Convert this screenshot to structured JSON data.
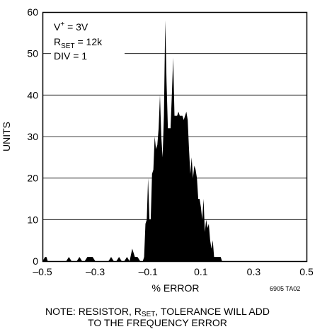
{
  "chart_data": {
    "type": "area",
    "title": "",
    "xlabel": "% ERROR",
    "ylabel": "UNITS",
    "xlim": [
      -0.5,
      0.5
    ],
    "ylim": [
      0,
      60
    ],
    "xticks": [
      "–0.5",
      "–0.3",
      "–0.1",
      "0.1",
      "0.3",
      "0.5"
    ],
    "yticks": [
      "0",
      "10",
      "20",
      "30",
      "40",
      "50",
      "60"
    ],
    "grid": "horizontal",
    "annotations": {
      "line1_base": "V",
      "line1_sup": "+",
      "line1_rest": " = 3V",
      "line2_base": "R",
      "line2_sub": "SET",
      "line2_rest": " = 12k",
      "line3": "DIV = 1"
    },
    "x": [
      -0.5,
      -0.49,
      -0.485,
      -0.48,
      -0.47,
      -0.46,
      -0.45,
      -0.44,
      -0.43,
      -0.42,
      -0.41,
      -0.4,
      -0.39,
      -0.38,
      -0.37,
      -0.36,
      -0.35,
      -0.34,
      -0.33,
      -0.32,
      -0.31,
      -0.3,
      -0.29,
      -0.28,
      -0.27,
      -0.26,
      -0.25,
      -0.24,
      -0.23,
      -0.22,
      -0.21,
      -0.2,
      -0.19,
      -0.18,
      -0.17,
      -0.16,
      -0.15,
      -0.145,
      -0.14,
      -0.13,
      -0.12,
      -0.115,
      -0.11,
      -0.105,
      -0.1,
      -0.095,
      -0.09,
      -0.085,
      -0.08,
      -0.075,
      -0.07,
      -0.065,
      -0.06,
      -0.055,
      -0.05,
      -0.045,
      -0.04,
      -0.035,
      -0.03,
      -0.025,
      -0.02,
      -0.015,
      -0.01,
      -0.005,
      0.0,
      0.005,
      0.01,
      0.015,
      0.02,
      0.025,
      0.03,
      0.035,
      0.04,
      0.045,
      0.05,
      0.055,
      0.06,
      0.065,
      0.07,
      0.075,
      0.08,
      0.085,
      0.09,
      0.095,
      0.1,
      0.105,
      0.11,
      0.115,
      0.12,
      0.125,
      0.13,
      0.135,
      0.14,
      0.145,
      0.15,
      0.155,
      0.16,
      0.165,
      0.17,
      0.175,
      0.18,
      0.185,
      0.19,
      0.195,
      0.2,
      0.205,
      0.21,
      0.215,
      0.22,
      0.225,
      0.23,
      0.24,
      0.25,
      0.26,
      0.27,
      0.28,
      0.29,
      0.3,
      0.5
    ],
    "values": [
      0,
      1,
      1,
      0,
      0,
      0,
      0,
      0,
      0,
      0,
      0,
      1,
      0,
      0,
      0,
      1,
      0,
      0,
      1,
      1,
      1,
      0,
      0,
      0,
      0,
      0,
      0,
      1,
      0,
      0,
      1,
      0,
      0,
      1,
      0,
      3,
      1,
      1,
      1,
      0,
      0,
      1,
      9,
      10,
      20,
      10,
      10,
      21,
      22,
      30,
      27,
      28,
      32,
      40,
      30,
      25,
      35,
      58,
      43,
      32,
      32,
      32,
      40,
      49,
      35,
      35,
      35,
      36,
      35,
      35,
      35,
      34,
      35,
      36,
      34,
      27,
      21,
      25,
      20,
      23,
      22,
      20,
      15,
      15,
      13,
      10,
      15,
      7,
      10,
      8,
      9,
      5,
      3,
      5,
      1,
      1,
      1,
      1,
      1,
      1,
      0,
      0,
      0,
      0,
      0,
      0,
      0,
      0,
      0,
      0,
      0,
      0,
      0,
      0,
      0,
      0,
      0,
      0,
      0
    ]
  },
  "figure_code": "6905 TA02",
  "note": {
    "part1": "NOTE: RESISTOR, R",
    "sub": "SET",
    "part2": ", TOLERANCE WILL ADD",
    "line2": "TO THE FREQUENCY ERROR"
  },
  "colors": {
    "ink": "#000000",
    "background": "#ffffff"
  }
}
